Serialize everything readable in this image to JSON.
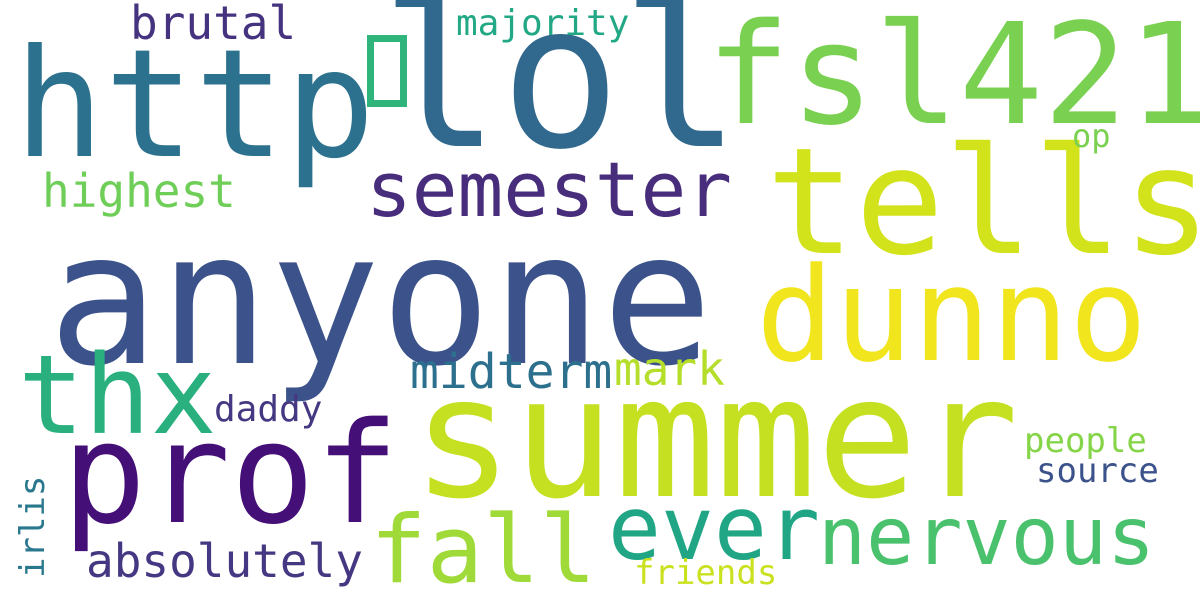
{
  "cloud": {
    "words": {
      "anyone": {
        "text": "anyone",
        "color": "#3b528b"
      },
      "summer": {
        "text": "summer",
        "color": "#c5e021"
      },
      "lol": {
        "text": "lol",
        "color": "#31688e"
      },
      "fsl421": {
        "text": "fsl421",
        "color": "#7ad151"
      },
      "http": {
        "text": "http",
        "color": "#2c728e"
      },
      "tells": {
        "text": "tells",
        "color": "#d2e21b"
      },
      "prof": {
        "text": "prof",
        "color": "#440f76"
      },
      "dunno": {
        "text": "dunno",
        "color": "#f1e51d"
      },
      "thx": {
        "text": "thx",
        "color": "#2ab07f"
      },
      "semester": {
        "text": "semester",
        "color": "#472d7b"
      },
      "ever": {
        "text": "ever",
        "color": "#21a685"
      },
      "nervous": {
        "text": "nervous",
        "color": "#4ac16d"
      },
      "fall": {
        "text": "fall",
        "color": "#a0da39"
      },
      "brutal": {
        "text": "brutal",
        "color": "#46337f"
      },
      "majority": {
        "text": "majority",
        "color": "#22a884"
      },
      "highest": {
        "text": "highest",
        "color": "#6ece58"
      },
      "op": {
        "text": "op",
        "color": "#7ad151"
      },
      "midterm": {
        "text": "midterm",
        "color": "#2d708e"
      },
      "mark": {
        "text": "mark",
        "color": "#b5de2b"
      },
      "daddy": {
        "text": "daddy",
        "color": "#453781"
      },
      "people": {
        "text": "people",
        "color": "#86d549"
      },
      "source": {
        "text": "source",
        "color": "#3b528b"
      },
      "absolutely": {
        "text": "absolutely",
        "color": "#453781"
      },
      "friends": {
        "text": "friends",
        "color": "#cae11f"
      },
      "irlis": {
        "text": "irlis",
        "color": "#2a788e"
      }
    }
  }
}
